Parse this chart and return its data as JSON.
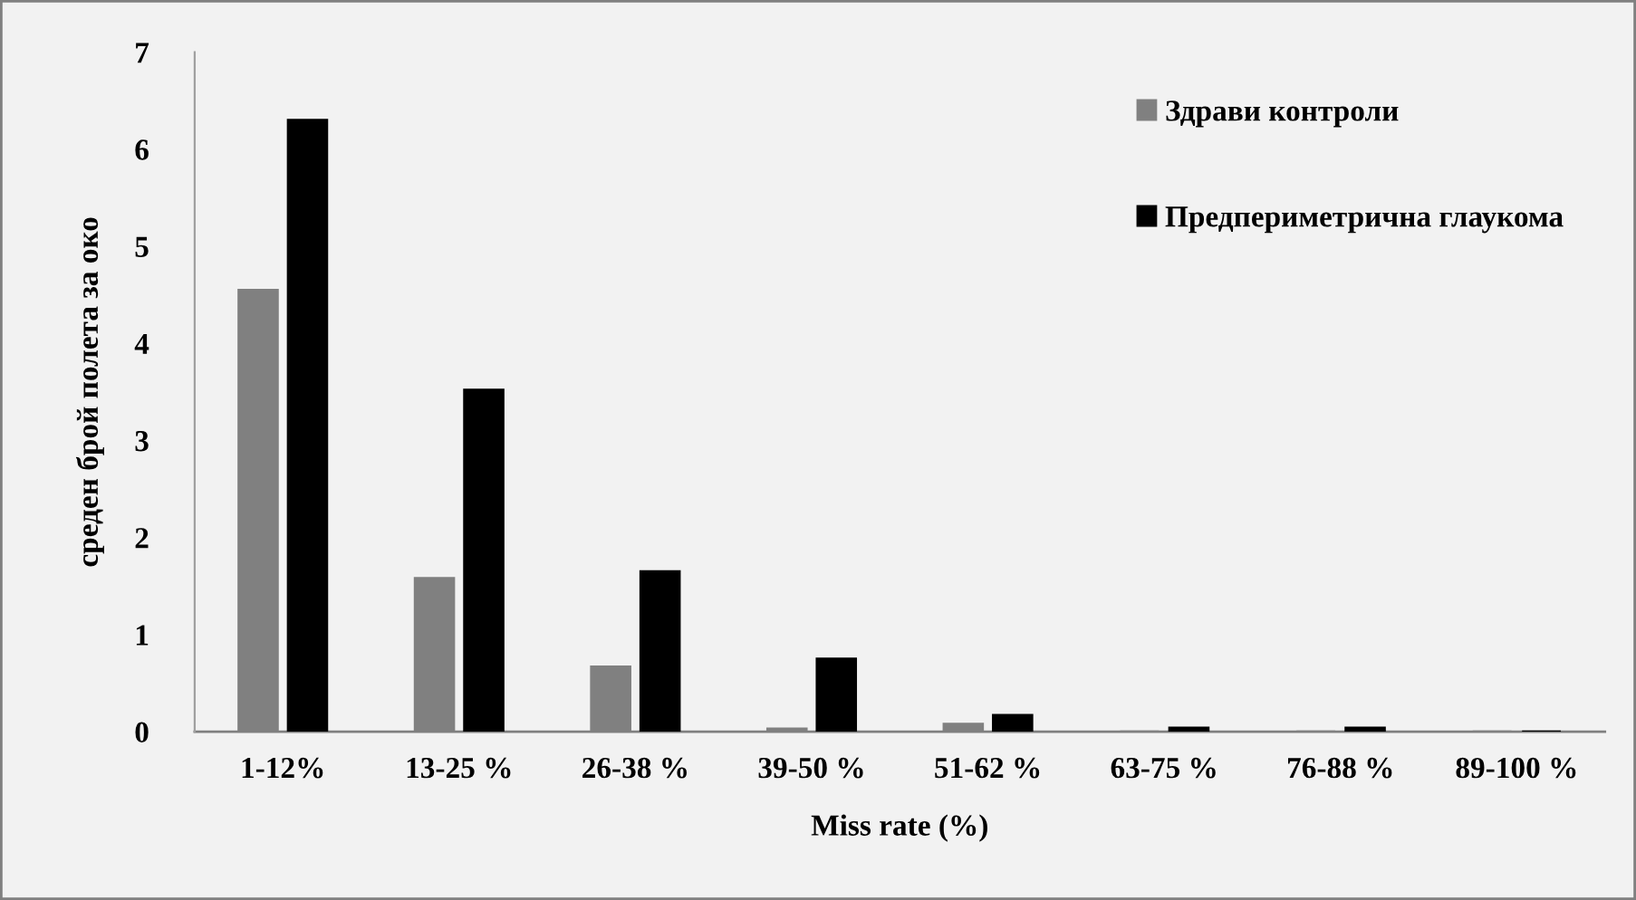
{
  "chart_data": {
    "type": "bar",
    "xlabel": "Miss rate (%)",
    "ylabel": "среден брой полета за око",
    "categories": [
      "1-12%",
      "13-25 %",
      "26-38 %",
      "39-50 %",
      "51-62 %",
      "63-75 %",
      "76-88 %",
      "89-100 %"
    ],
    "series": [
      {
        "name": "Здрави контроли",
        "color": "#808080",
        "values": [
          4.55,
          1.58,
          0.67,
          0.03,
          0.08,
          0,
          0,
          0
        ]
      },
      {
        "name": "Предпериметрична глаукома",
        "color": "#000000",
        "values": [
          6.3,
          3.52,
          1.65,
          0.75,
          0.17,
          0.04,
          0.04,
          0
        ]
      }
    ],
    "ylim": [
      0,
      7
    ],
    "yticks": [
      0,
      1,
      2,
      3,
      4,
      5,
      6,
      7
    ],
    "grid": false,
    "legend": "top right"
  }
}
